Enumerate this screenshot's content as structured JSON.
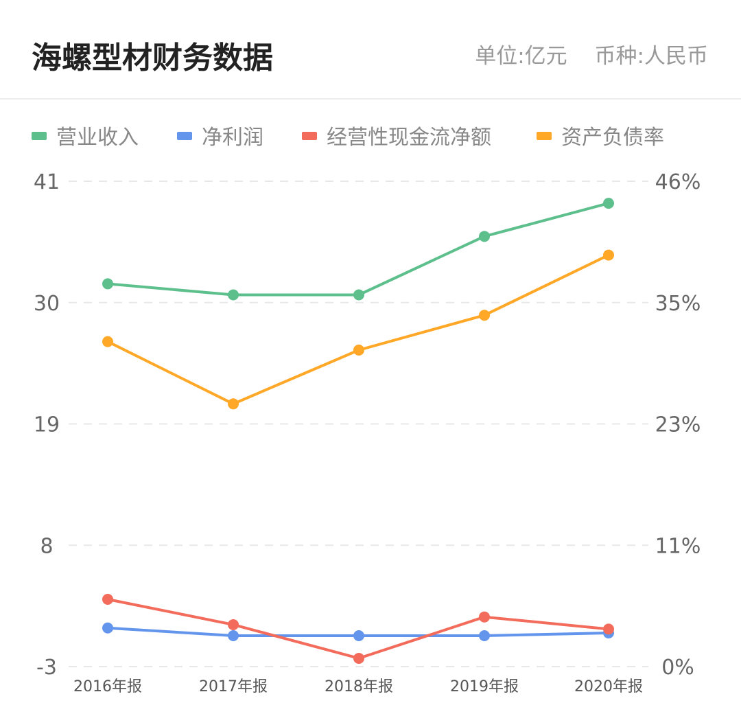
{
  "header": {
    "title": "海螺型材财务数据",
    "unit": "单位:亿元",
    "currency": "币种:人民币"
  },
  "chart_data": {
    "type": "line",
    "categories": [
      "2016年报",
      "2017年报",
      "2018年报",
      "2019年报",
      "2020年报"
    ],
    "legend_position": "top",
    "grid": true,
    "left_axis": {
      "ticks": [
        "41",
        "30",
        "19",
        "8",
        "-3"
      ],
      "range": [
        -3,
        41
      ]
    },
    "right_axis": {
      "ticks": [
        "46%",
        "35%",
        "23%",
        "11%",
        "0%"
      ],
      "range": [
        0,
        46
      ]
    },
    "series": [
      {
        "name": "营业收入",
        "axis": "left",
        "color": "#5cbf8c",
        "values": [
          31.7,
          30.7,
          30.7,
          36.0,
          39.0
        ]
      },
      {
        "name": "净利润",
        "axis": "left",
        "color": "#6495ed",
        "values": [
          0.5,
          -0.2,
          -0.2,
          -0.2,
          0.05
        ]
      },
      {
        "name": "经营性现金流净额",
        "axis": "left",
        "color": "#f26b5b",
        "values": [
          3.1,
          0.8,
          -2.25,
          1.5,
          0.4
        ]
      },
      {
        "name": "资产负债率",
        "axis": "right",
        "color": "#ffa726",
        "values": [
          30.8,
          24.9,
          30.0,
          33.3,
          39.0
        ]
      }
    ]
  }
}
